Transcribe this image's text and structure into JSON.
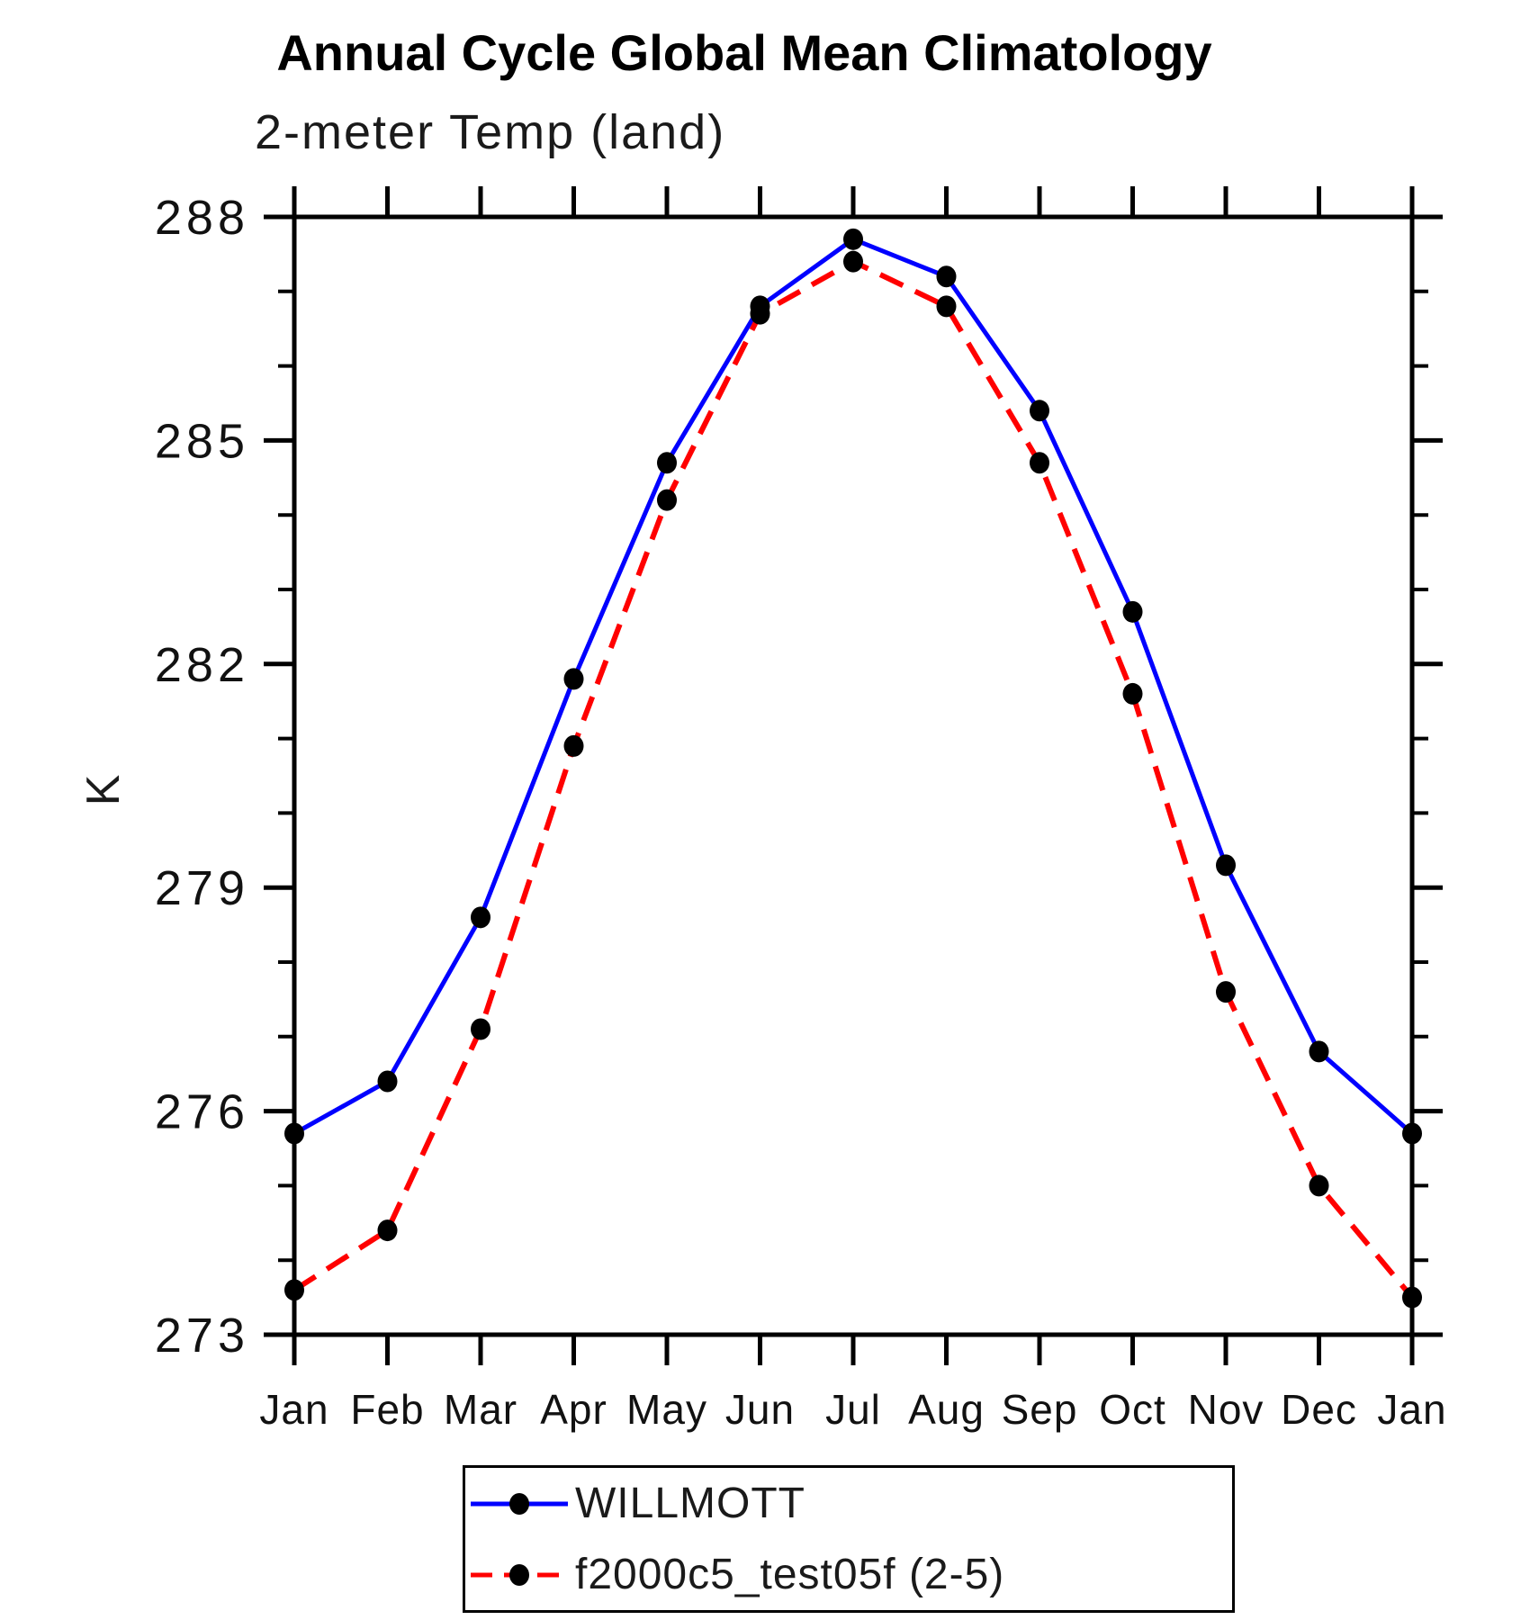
{
  "chart_data": {
    "type": "line",
    "title": "Annual Cycle Global Mean Climatology",
    "subtitle": "2-meter Temp (land)",
    "xlabel": "",
    "ylabel": "K",
    "x_categories": [
      "Jan",
      "Feb",
      "Mar",
      "Apr",
      "May",
      "Jun",
      "Jul",
      "Aug",
      "Sep",
      "Oct",
      "Nov",
      "Dec",
      "Jan"
    ],
    "ylim": [
      273,
      288
    ],
    "y_major_ticks": [
      273,
      276,
      279,
      282,
      285,
      288
    ],
    "y_minor_step": 1,
    "grid": false,
    "legend_position": "below-chart",
    "axis_color": "#000000",
    "marker_shape": "filled-circle",
    "marker_color": "#000000",
    "series": [
      {
        "name": "WILLMOTT",
        "color": "#0000ff",
        "line_style": "solid",
        "values": [
          275.7,
          276.4,
          278.6,
          281.8,
          284.7,
          286.8,
          287.7,
          287.2,
          285.4,
          282.7,
          279.3,
          276.8,
          275.7
        ]
      },
      {
        "name": "f2000c5_test05f (2-5)",
        "color": "#ff0000",
        "line_style": "dashed",
        "values": [
          273.6,
          274.4,
          277.1,
          280.9,
          284.2,
          286.7,
          287.4,
          286.8,
          284.7,
          281.6,
          277.6,
          275.0,
          273.5
        ]
      }
    ]
  }
}
